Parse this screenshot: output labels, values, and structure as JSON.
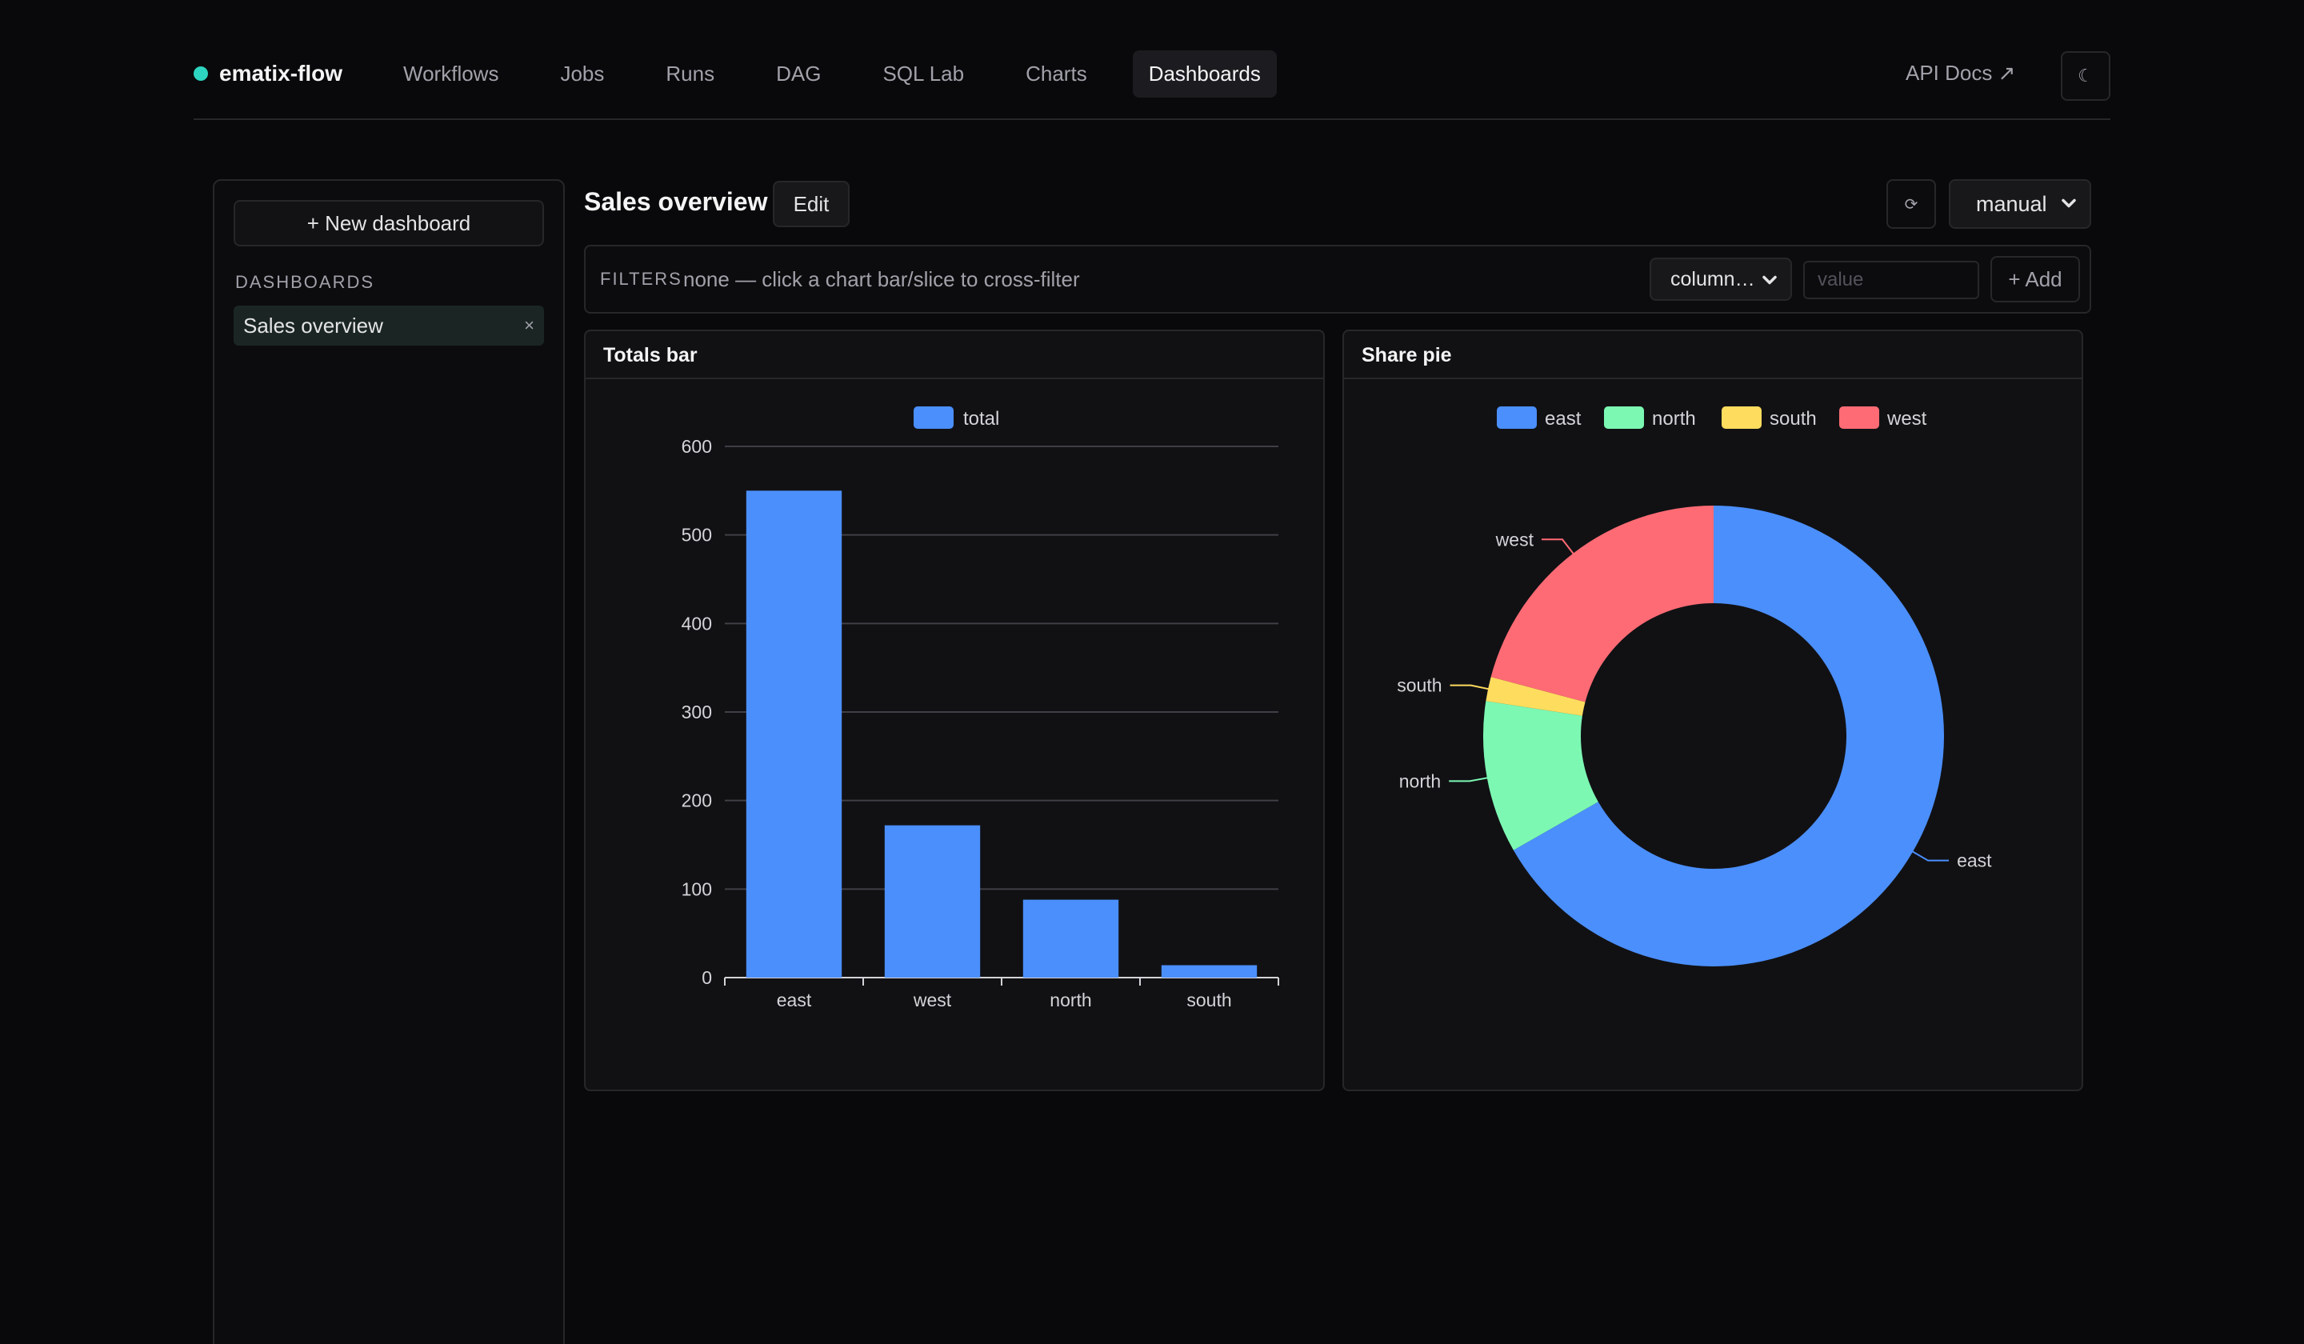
{
  "nav": {
    "brand": "ematix-flow",
    "links": [
      "Workflows",
      "Jobs",
      "Runs",
      "DAG",
      "SQL Lab",
      "Charts",
      "Dashboards"
    ],
    "active": "Dashboards",
    "api_docs": "API Docs ↗",
    "theme_icon": "☾"
  },
  "sidebar": {
    "new_button": "+ New dashboard",
    "heading": "DASHBOARDS",
    "items": [
      {
        "label": "Sales overview",
        "close": "×"
      }
    ]
  },
  "header": {
    "title": "Sales overview",
    "edit": "Edit",
    "refresh_icon": "⟳",
    "refresh_mode": "manual"
  },
  "filters": {
    "label": "FILTERS",
    "hint": "none — click a chart bar/slice to cross-filter",
    "column_select": "column…",
    "value_placeholder": "value",
    "add": "+ Add"
  },
  "chart_data": [
    {
      "title": "Totals bar",
      "type": "bar",
      "categories": [
        "east",
        "west",
        "north",
        "south"
      ],
      "series": [
        {
          "name": "total",
          "values": [
            550,
            172,
            88,
            14
          ],
          "color": "#4b8ffc"
        }
      ],
      "ylim": [
        0,
        600
      ],
      "yticks": [
        0,
        100,
        200,
        300,
        400,
        500,
        600
      ],
      "grid": true,
      "legend": "top-center"
    },
    {
      "title": "Share pie",
      "type": "pie",
      "donut": true,
      "slices": [
        {
          "label": "east",
          "value": 550,
          "color": "#4b8ffc"
        },
        {
          "label": "north",
          "value": 88,
          "color": "#7cf8b3"
        },
        {
          "label": "south",
          "value": 14,
          "color": "#fedc5e"
        },
        {
          "label": "west",
          "value": 172,
          "color": "#ff6b74"
        }
      ],
      "legend": "top-center"
    }
  ]
}
